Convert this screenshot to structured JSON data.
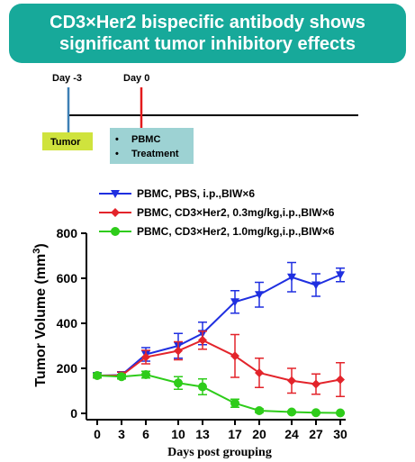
{
  "banner": {
    "line1": "CD3×Her2 bispecific antibody shows",
    "line2": "significant tumor inhibitory effects",
    "color": "#17a99a"
  },
  "timeline": {
    "day_minus3": "Day -3",
    "day0": "Day 0",
    "tumor_label": "Tumor",
    "tumor_color": "#cfe33d",
    "pbmc_bullet": "•",
    "pbmc_item": "PBMC",
    "treatment_item": "Treatment",
    "box_color": "#9dd2d3",
    "marker_minus3_color": "#3d7fb5",
    "marker_0_color": "#e31a1c"
  },
  "chart_data": {
    "type": "line",
    "title": "",
    "xlabel": "Days post grouping",
    "ylabel_main": "Tumor Volume (mm",
    "ylabel_sup": "3",
    "ylabel_close": ")",
    "x": [
      0,
      3,
      6,
      10,
      13,
      17,
      20,
      24,
      27,
      30
    ],
    "xticks": [
      "0",
      "3",
      "6",
      "10",
      "13",
      "17",
      "20",
      "24",
      "27",
      "30"
    ],
    "yticks": [
      "0",
      "200",
      "400",
      "600",
      "800"
    ],
    "ylim": [
      0,
      800
    ],
    "xlim": [
      0,
      30
    ],
    "legend_position": "top",
    "series": [
      {
        "name": "PBMC, PBS, i.p.,BIW×6",
        "color": "#1f2fe0",
        "marker": "triangle-down",
        "values": [
          168,
          170,
          262,
          300,
          355,
          495,
          527,
          605,
          570,
          615
        ],
        "errors": [
          10,
          15,
          30,
          55,
          50,
          50,
          55,
          65,
          50,
          30
        ]
      },
      {
        "name": "PBMC, CD3×Her2, 0.3mg/kg,i.p.,BIW×6",
        "color": "#e3242b",
        "marker": "diamond",
        "values": [
          168,
          168,
          250,
          278,
          325,
          255,
          180,
          145,
          130,
          150
        ],
        "errors": [
          10,
          15,
          30,
          40,
          40,
          95,
          65,
          55,
          45,
          75
        ]
      },
      {
        "name": "PBMC, CD3×Her2, 1.0mg/kg,i.p.,BIW×6",
        "color": "#2ecc1a",
        "marker": "circle",
        "values": [
          168,
          163,
          172,
          135,
          118,
          45,
          12,
          6,
          3,
          2
        ],
        "errors": [
          10,
          10,
          15,
          28,
          35,
          18,
          8,
          4,
          3,
          2
        ]
      }
    ]
  }
}
